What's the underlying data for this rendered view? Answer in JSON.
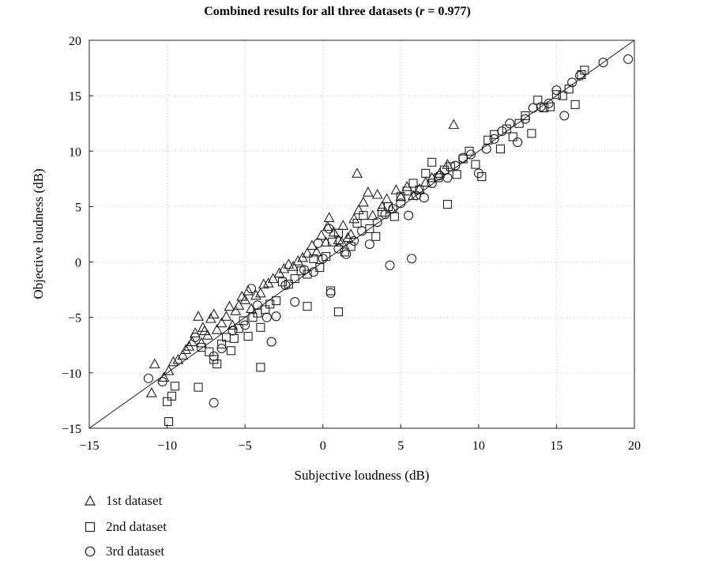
{
  "chart_data": {
    "type": "scatter",
    "title_text": "Combined results for all three datasets (",
    "title_r": "r",
    "title_value": " = 0.977)",
    "xlabel": "Subjective loudness (dB)",
    "ylabel": "Objective loudness (dB)",
    "xlim": [
      -15,
      20
    ],
    "ylim": [
      -15,
      20
    ],
    "xticks": [
      -15,
      -10,
      -5,
      0,
      5,
      10,
      15,
      20
    ],
    "yticks": [
      -15,
      -10,
      -5,
      0,
      5,
      10,
      15,
      20
    ],
    "xtick_labels": [
      "−15",
      "−10",
      "−5",
      "0",
      "5",
      "10",
      "15",
      "20"
    ],
    "ytick_labels": [
      "−15",
      "−10",
      "−5",
      "0",
      "5",
      "10",
      "15",
      "20"
    ],
    "grid": "dotted",
    "reference_line": {
      "x": [
        -15,
        20
      ],
      "y": [
        -15,
        20
      ]
    },
    "legend_position": "below",
    "series": [
      {
        "name": "1st dataset",
        "marker": "triangle",
        "x": [
          -11,
          -10.8,
          -10.2,
          -9.9,
          -9.6,
          -9.3,
          -9.0,
          -8.8,
          -8.6,
          -8.4,
          -8.2,
          -8.0,
          -7.8,
          -7.7,
          -7.6,
          -7.4,
          -7.2,
          -7.0,
          -6.8,
          -6.5,
          -6.2,
          -6.0,
          -5.8,
          -5.6,
          -5.4,
          -5.2,
          -5.0,
          -4.8,
          -4.6,
          -4.3,
          -4.0,
          -3.8,
          -3.5,
          -3.2,
          -2.8,
          -2.5,
          -2.2,
          -1.9,
          -1.6,
          -1.3,
          -1.0,
          -0.7,
          -0.4,
          -0.1,
          0.2,
          0.4,
          0.7,
          1.0,
          1.3,
          1.6,
          2.0,
          2.3,
          2.6,
          2.9,
          3.2,
          3.5,
          3.8,
          4.1,
          4.4,
          4.7,
          5.0,
          5.4,
          5.8,
          6.2,
          6.6,
          7.0,
          7.5,
          8.0,
          8.4,
          1.2,
          1.8,
          2.2,
          0.3
        ],
        "y": [
          -11.8,
          -9.2,
          -10.4,
          -9.8,
          -9.0,
          -8.8,
          -8.4,
          -7.9,
          -7.6,
          -7.2,
          -6.4,
          -4.9,
          -7.3,
          -5.9,
          -6.2,
          -6.6,
          -5.1,
          -4.7,
          -6.1,
          -5.5,
          -4.9,
          -4.0,
          -5.7,
          -4.4,
          -3.9,
          -3.1,
          -3.4,
          -2.6,
          -4.2,
          -3.0,
          -2.8,
          -2.0,
          -1.9,
          -1.5,
          -1.0,
          -0.6,
          -0.2,
          -0.4,
          0.1,
          0.4,
          0.8,
          1.5,
          0.9,
          2.4,
          1.8,
          4.0,
          2.7,
          2.0,
          3.3,
          2.2,
          3.9,
          4.7,
          5.4,
          6.3,
          4.2,
          6.1,
          5.0,
          5.7,
          4.8,
          6.5,
          5.9,
          6.8,
          6.0,
          6.6,
          7.2,
          7.6,
          8.0,
          8.8,
          12.4,
          1.8,
          2.5,
          8.0,
          3.2
        ]
      },
      {
        "name": "2nd dataset",
        "marker": "square",
        "x": [
          -10.0,
          -9.9,
          -9.7,
          -9.5,
          -8.0,
          -7.8,
          -7.3,
          -7.0,
          -6.8,
          -6.5,
          -6.2,
          -5.9,
          -5.7,
          -5.4,
          -5.1,
          -4.8,
          -4.5,
          -4.2,
          -4.0,
          -3.7,
          -3.4,
          -3.0,
          -2.6,
          -2.2,
          -1.8,
          -1.4,
          -1.0,
          -0.6,
          -0.2,
          0.2,
          0.6,
          1.0,
          1.4,
          1.8,
          2.2,
          2.6,
          3.0,
          3.4,
          3.8,
          4.2,
          4.6,
          5.0,
          5.4,
          5.8,
          6.2,
          6.6,
          7.0,
          7.4,
          7.8,
          8.2,
          8.6,
          9.0,
          9.4,
          9.8,
          10.2,
          10.6,
          11.0,
          11.4,
          11.8,
          12.2,
          12.6,
          13.0,
          13.4,
          13.8,
          14.2,
          14.6,
          15.0,
          15.4,
          15.8,
          16.2,
          16.6,
          16.8,
          1.0,
          0.5,
          -1.0,
          -4.0,
          8.0
        ],
        "y": [
          -12.6,
          -14.4,
          -12.1,
          -11.2,
          -11.3,
          -7.7,
          -8.1,
          -8.8,
          -9.2,
          -7.4,
          -6.8,
          -8.0,
          -6.9,
          -6.0,
          -5.3,
          -6.7,
          -5.0,
          -4.6,
          -5.9,
          -4.3,
          -3.8,
          -3.5,
          -1.8,
          -2.0,
          -1.5,
          -0.8,
          -1.1,
          0.3,
          -0.5,
          0.5,
          1.8,
          2.6,
          0.9,
          1.4,
          3.5,
          4.2,
          3.0,
          2.3,
          4.5,
          5.0,
          4.1,
          5.9,
          6.4,
          7.1,
          6.5,
          8.0,
          9.0,
          7.6,
          8.3,
          8.6,
          7.9,
          9.3,
          10.0,
          8.8,
          7.7,
          11.0,
          11.5,
          10.2,
          12.0,
          11.3,
          12.5,
          13.2,
          11.6,
          14.6,
          13.9,
          14.0,
          15.1,
          15.0,
          15.6,
          14.2,
          16.9,
          17.3,
          -4.5,
          -2.6,
          -4.0,
          -9.5,
          5.2
        ]
      },
      {
        "name": "3rd dataset",
        "marker": "circle",
        "x": [
          -11.2,
          -10.3,
          -8.2,
          -7.0,
          -6.5,
          -5.8,
          -5.0,
          -4.6,
          -4.2,
          -3.6,
          -3.0,
          -2.4,
          -1.8,
          -1.2,
          -0.6,
          0.0,
          0.5,
          1.0,
          1.5,
          2.0,
          2.5,
          3.0,
          3.5,
          4.0,
          4.5,
          5.0,
          5.5,
          6.0,
          6.5,
          7.0,
          7.5,
          8.0,
          8.5,
          9.0,
          9.5,
          10.0,
          10.5,
          11.0,
          11.5,
          12.0,
          12.5,
          13.0,
          13.5,
          14.0,
          14.5,
          15.0,
          15.5,
          16.0,
          16.5,
          18.0,
          19.6,
          4.3,
          5.7,
          0.4,
          -0.3,
          -7.0,
          -3.3
        ],
        "y": [
          -10.5,
          -10.8,
          -6.8,
          -12.7,
          -7.8,
          -6.2,
          -5.7,
          -2.4,
          -3.9,
          -5.0,
          -4.9,
          -2.1,
          -3.6,
          -0.7,
          -0.9,
          0.3,
          -2.8,
          1.2,
          0.7,
          1.9,
          2.8,
          1.6,
          3.6,
          4.3,
          4.8,
          5.3,
          4.2,
          6.0,
          5.8,
          7.1,
          7.8,
          7.6,
          8.7,
          9.4,
          9.7,
          8.0,
          10.2,
          11.1,
          11.8,
          12.5,
          10.8,
          12.9,
          13.9,
          14.0,
          14.3,
          15.5,
          13.2,
          16.2,
          16.8,
          18.0,
          18.3,
          -0.3,
          0.3,
          3.0,
          1.7,
          -8.5,
          -7.2
        ]
      }
    ]
  }
}
